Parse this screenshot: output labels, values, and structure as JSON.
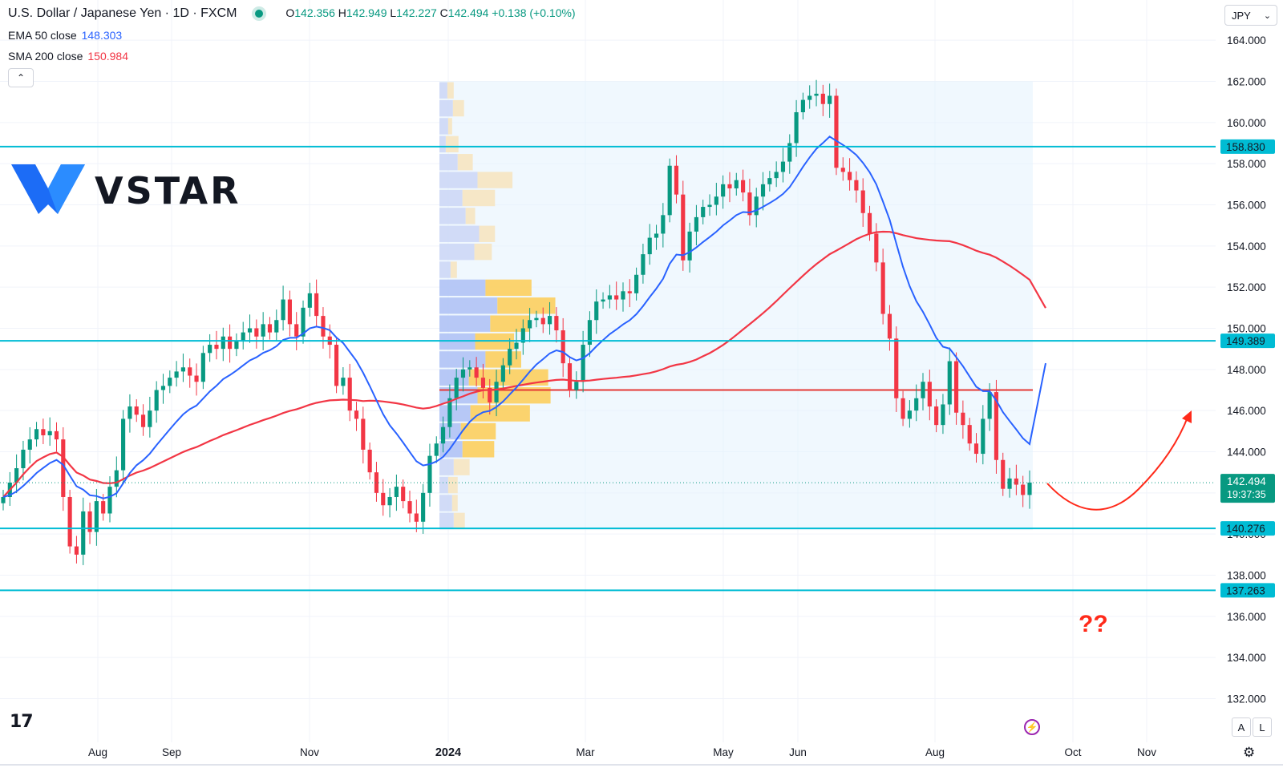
{
  "header": {
    "title": "U.S. Dollar / Japanese Yen · 1D · FXCM",
    "ohlc": {
      "o_label": "O",
      "o": "142.356",
      "h_label": "H",
      "h": "142.949",
      "l_label": "L",
      "l": "142.227",
      "c_label": "C",
      "c": "142.494",
      "change": "+0.138 (+0.10%)"
    }
  },
  "indicators": {
    "ema": {
      "label": "EMA 50 close",
      "value": "148.303",
      "color": "#2962ff"
    },
    "sma": {
      "label": "SMA 200 close",
      "value": "150.984",
      "color": "#f23645"
    }
  },
  "currency_selector": "JPY",
  "logo": {
    "brand": "VSTAR",
    "icon": "vstar-v-icon"
  },
  "footer": {
    "tradingview_logo": "17",
    "mode_auto": "A",
    "mode_log": "L"
  },
  "colors": {
    "up": "#089981",
    "down": "#f23645",
    "ema": "#2962ff",
    "sma": "#f23645",
    "level_line": "#00bcd4",
    "annotation": "#ff2a1a"
  },
  "chart_data": {
    "type": "candlestick",
    "symbol": "USDJPY",
    "ylim": [
      131,
      165
    ],
    "y_ticks": [
      "164.000",
      "162.000",
      "160.000",
      "158.000",
      "156.000",
      "154.000",
      "152.000",
      "150.000",
      "148.000",
      "146.000",
      "144.000",
      "142.000",
      "140.000",
      "138.000",
      "136.000",
      "134.000",
      "132.000"
    ],
    "x_labels": [
      "Aug",
      "Sep",
      "Nov",
      "2024",
      "Mar",
      "May",
      "Jun",
      "Aug",
      "Oct",
      "Nov"
    ],
    "x_label_bold": "2024",
    "price_levels": [
      {
        "value": 158.83,
        "label": "158.830"
      },
      {
        "value": 149.389,
        "label": "149.389"
      },
      {
        "value": 140.276,
        "label": "140.276"
      },
      {
        "value": 137.263,
        "label": "137.263"
      }
    ],
    "poc_level": 147.0,
    "current_price": {
      "value": 142.494,
      "label": "142.494",
      "countdown": "19:37:35"
    },
    "volume_profile": {
      "price_from": 140.2,
      "price_to": 162.0,
      "rows": [
        {
          "up": 0.18,
          "down": 0.14
        },
        {
          "up": 0.16,
          "down": 0.07
        },
        {
          "up": 0.11,
          "down": 0.12
        },
        {
          "up": 0.18,
          "down": 0.2
        },
        {
          "up": 0.29,
          "down": 0.4
        },
        {
          "up": 0.27,
          "down": 0.44
        },
        {
          "up": 0.39,
          "down": 0.75
        },
        {
          "up": 0.48,
          "down": 0.92
        },
        {
          "up": 0.37,
          "down": 1.0
        },
        {
          "up": 0.58,
          "down": 0.45
        },
        {
          "up": 0.45,
          "down": 0.49
        },
        {
          "up": 0.64,
          "down": 0.5
        },
        {
          "up": 0.73,
          "down": 0.73
        },
        {
          "up": 0.58,
          "down": 0.58
        },
        {
          "up": 0.14,
          "down": 0.08
        },
        {
          "up": 0.44,
          "down": 0.22
        },
        {
          "up": 0.5,
          "down": 0.2
        },
        {
          "up": 0.33,
          "down": 0.12
        },
        {
          "up": 0.29,
          "down": 0.41
        },
        {
          "up": 0.48,
          "down": 0.44
        },
        {
          "up": 0.23,
          "down": 0.19
        },
        {
          "up": 0.08,
          "down": 0.16
        },
        {
          "up": 0.11,
          "down": 0.05
        },
        {
          "up": 0.17,
          "down": 0.14
        },
        {
          "up": 0.1,
          "down": 0.08
        }
      ]
    },
    "candles_close": [
      141.8,
      142.5,
      143.2,
      144.1,
      144.6,
      145.1,
      144.8,
      145.0,
      144.6,
      141.8,
      139.4,
      139.0,
      141.1,
      140.1,
      141.6,
      141.0,
      142.3,
      143.1,
      145.6,
      146.2,
      145.8,
      145.2,
      146.0,
      147.0,
      147.2,
      147.6,
      147.9,
      148.1,
      147.7,
      147.4,
      148.8,
      149.2,
      149.0,
      149.6,
      149.0,
      149.4,
      149.8,
      150.0,
      149.6,
      150.2,
      149.8,
      150.4,
      151.4,
      150.2,
      149.6,
      151.0,
      151.7,
      150.6,
      149.6,
      149.2,
      147.2,
      147.6,
      146.0,
      145.6,
      144.1,
      143.0,
      142.0,
      141.4,
      141.8,
      142.3,
      141.6,
      141.0,
      140.6,
      142.0,
      143.8,
      144.4,
      145.2,
      146.6,
      147.6,
      148.0,
      148.1,
      147.6,
      147.1,
      146.4,
      147.4,
      148.2,
      149.0,
      149.3,
      150.0,
      150.4,
      150.5,
      150.2,
      150.6,
      149.9,
      148.3,
      147.0,
      147.4,
      149.2,
      150.4,
      151.3,
      151.4,
      151.6,
      151.4,
      151.8,
      151.7,
      152.6,
      153.6,
      154.4,
      154.6,
      155.5,
      157.9,
      156.5,
      153.3,
      154.7,
      155.4,
      155.9,
      156.0,
      156.4,
      157.0,
      156.8,
      157.2,
      156.6,
      155.5,
      156.4,
      157.0,
      157.3,
      157.6,
      158.1,
      159.0,
      160.5,
      161.1,
      161.3,
      161.4,
      160.9,
      161.3,
      157.8,
      157.6,
      157.2,
      156.7,
      155.6,
      154.6,
      153.2,
      150.7,
      149.5,
      146.6,
      145.6,
      146.0,
      146.6,
      147.4,
      146.2,
      145.3,
      146.3,
      148.4,
      145.9,
      145.3,
      144.4,
      143.9,
      145.6,
      146.9,
      143.6,
      142.2,
      142.7,
      142.4,
      141.9,
      142.5
    ],
    "series": [
      {
        "name": "EMA 50 close",
        "last": 148.303
      },
      {
        "name": "SMA 200 close",
        "last": 150.984
      }
    ],
    "annotations": {
      "question_marks": "??",
      "projection": "down then up arrow"
    }
  }
}
